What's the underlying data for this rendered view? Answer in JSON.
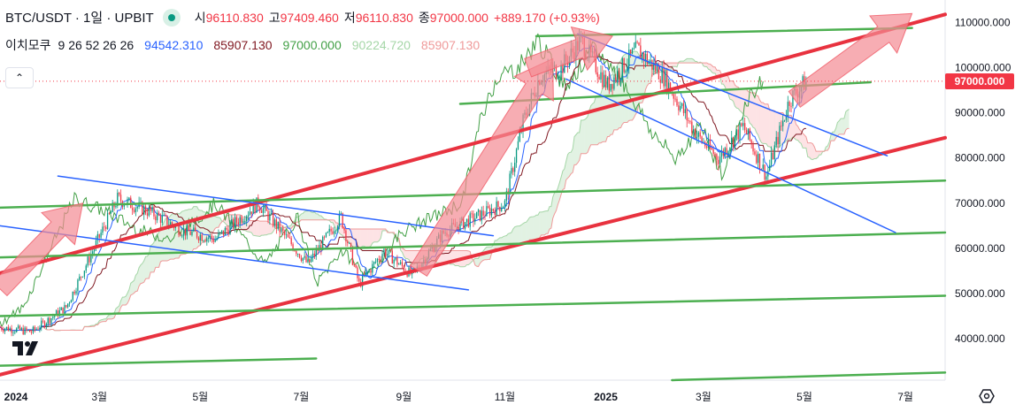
{
  "header": {
    "symbol_title": "BTC/USDT · 1일 · UPBIT",
    "open_label": "시",
    "open_value": "96110.830",
    "high_label": "고",
    "high_value": "97409.460",
    "low_label": "저",
    "low_value": "96110.830",
    "close_label": "종",
    "close_value": "97000.000",
    "change": "+889.170 (+0.93%)"
  },
  "indicator": {
    "name": "이치모쿠",
    "params": "9 26 52 26 26",
    "values": [
      "94542.310",
      "85907.130",
      "97000.000",
      "90224.720",
      "85907.130"
    ],
    "colors": [
      "#2962ff",
      "#801922",
      "#43a047",
      "#a5d6a7",
      "#ef9a9a"
    ]
  },
  "current_price_tag": "97000.000",
  "collapse_symbol": "⌃",
  "colors": {
    "up": "#089981",
    "down": "#f23645",
    "accent_red": "#f23645",
    "trend_red": "#e8323f",
    "trend_green": "#4caf50",
    "trend_blue": "#2962ff",
    "arrow_fill": "#f48a93"
  },
  "chart_data": {
    "type": "candlestick",
    "title": "BTC/USDT · 1일 · UPBIT",
    "x_ticks": [
      "2024",
      "3월",
      "5월",
      "7월",
      "9월",
      "11월",
      "2025",
      "3월",
      "5월",
      "7월"
    ],
    "x_range": [
      "2024-01-01",
      "2025-07-25"
    ],
    "y_ticks": [
      "110000.000",
      "100000.000",
      "90000.000",
      "80000.000",
      "70000.000",
      "60000.000",
      "50000.000",
      "40000.000"
    ],
    "ylim": [
      30800,
      115000
    ],
    "last_price": 97000,
    "price_path": [
      [
        "2024-01-01",
        42500
      ],
      [
        "2024-01-20",
        41500
      ],
      [
        "2024-02-10",
        47000
      ],
      [
        "2024-02-28",
        61000
      ],
      [
        "2024-03-12",
        71000
      ],
      [
        "2024-04-01",
        68000
      ],
      [
        "2024-04-20",
        64000
      ],
      [
        "2024-05-10",
        62000
      ],
      [
        "2024-06-05",
        70000
      ],
      [
        "2024-06-25",
        61000
      ],
      [
        "2024-07-05",
        56500
      ],
      [
        "2024-07-25",
        67000
      ],
      [
        "2024-08-05",
        52000
      ],
      [
        "2024-08-20",
        59500
      ],
      [
        "2024-09-06",
        54000
      ],
      [
        "2024-09-25",
        63500
      ],
      [
        "2024-10-15",
        67000
      ],
      [
        "2024-11-01",
        70000
      ],
      [
        "2024-11-12",
        88000
      ],
      [
        "2024-11-22",
        98000
      ],
      [
        "2024-12-05",
        100000
      ],
      [
        "2024-12-17",
        106000
      ],
      [
        "2025-01-02",
        96000
      ],
      [
        "2025-01-20",
        104000
      ],
      [
        "2025-02-05",
        98000
      ],
      [
        "2025-02-25",
        85000
      ],
      [
        "2025-03-10",
        80000
      ],
      [
        "2025-03-25",
        87000
      ],
      [
        "2025-04-08",
        76000
      ],
      [
        "2025-04-22",
        93000
      ],
      [
        "2025-05-02",
        97000
      ]
    ],
    "trendlines": [
      {
        "color": "red",
        "from": [
          "2024-01-01",
          32000
        ],
        "to": [
          "2025-07-25",
          84500
        ]
      },
      {
        "color": "red",
        "from": [
          "2024-01-01",
          54500
        ],
        "to": [
          "2025-07-25",
          111800
        ]
      },
      {
        "color": "green",
        "from": [
          "2024-01-01",
          69000
        ],
        "to": [
          "2025-07-25",
          75000
        ]
      },
      {
        "color": "green",
        "from": [
          "2024-01-01",
          58000
        ],
        "to": [
          "2025-07-25",
          63500
        ]
      },
      {
        "color": "green",
        "from": [
          "2024-01-01",
          45000
        ],
        "to": [
          "2025-07-25",
          49500
        ]
      },
      {
        "color": "green",
        "from": [
          "2024-01-01",
          34000
        ],
        "to": [
          "2024-07-10",
          35600
        ]
      },
      {
        "color": "green",
        "from": [
          "2025-02-10",
          30800
        ],
        "to": [
          "2025-07-25",
          32500
        ]
      },
      {
        "color": "green",
        "from": [
          "2024-11-20",
          107000
        ],
        "to": [
          "2025-07-05",
          108800
        ]
      },
      {
        "color": "green",
        "from": [
          "2024-10-05",
          92000
        ],
        "to": [
          "2025-06-10",
          96800
        ]
      },
      {
        "color": "blue",
        "from": [
          "2024-02-05",
          76000
        ],
        "to": [
          "2024-10-25",
          62800
        ]
      },
      {
        "color": "blue",
        "from": [
          "2024-01-01",
          65000
        ],
        "to": [
          "2024-10-10",
          50800
        ]
      },
      {
        "color": "blue",
        "from": [
          "2024-12-15",
          107500
        ],
        "to": [
          "2025-06-20",
          80500
        ]
      },
      {
        "color": "blue",
        "from": [
          "2024-12-08",
          97500
        ],
        "to": [
          "2025-06-25",
          63500
        ]
      }
    ],
    "arrows": [
      {
        "from": [
          "2024-01-01",
          51000
        ],
        "to": [
          "2024-02-20",
          70000
        ]
      },
      {
        "from": [
          "2024-09-10",
          55000
        ],
        "to": [
          "2024-11-30",
          102000
        ]
      },
      {
        "from": [
          "2024-11-15",
          100000
        ],
        "to": [
          "2025-01-05",
          107000
        ]
      },
      {
        "from": [
          "2025-04-25",
          93000
        ],
        "to": [
          "2025-07-05",
          112000
        ]
      }
    ]
  }
}
